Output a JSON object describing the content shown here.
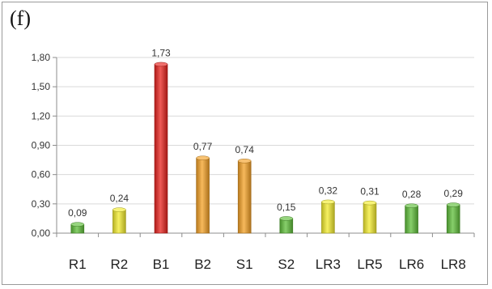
{
  "panel_label": "(f)",
  "colors": {
    "red": "#e8231e",
    "orange": "#f4a126",
    "yellow": "#f3ec2e",
    "green": "#5fbf3a",
    "gridline": "#d9d9d9",
    "axis": "#8c8c8c"
  },
  "chart_data": {
    "type": "bar",
    "title": "",
    "xlabel": "",
    "ylabel": "",
    "categories": [
      "R1",
      "R2",
      "B1",
      "B2",
      "S1",
      "S2",
      "LR3",
      "LR5",
      "LR6",
      "LR8"
    ],
    "values": [
      0.09,
      0.24,
      1.73,
      0.77,
      0.74,
      0.15,
      0.32,
      0.31,
      0.28,
      0.29
    ],
    "value_labels": [
      "0,09",
      "0,24",
      "1,73",
      "0,77",
      "0,74",
      "0,15",
      "0,32",
      "0,31",
      "0,28",
      "0,29"
    ],
    "bar_colors": [
      "green",
      "yellow",
      "red",
      "orange",
      "orange",
      "green",
      "yellow",
      "yellow",
      "green",
      "green"
    ],
    "ylim": [
      0,
      1.8
    ],
    "yticks": [
      0,
      0.3,
      0.6,
      0.9,
      1.2,
      1.5,
      1.8
    ],
    "ytick_labels": [
      "0,00",
      "0,30",
      "0,60",
      "0,90",
      "1,20",
      "1,50",
      "1,80"
    ],
    "grid": true,
    "legend": "none"
  }
}
